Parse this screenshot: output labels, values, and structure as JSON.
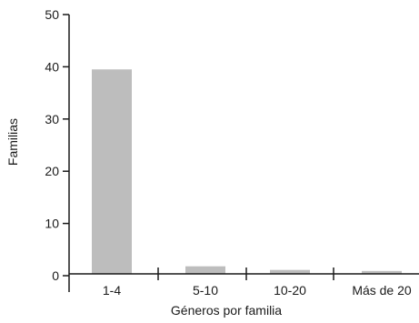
{
  "chart_data": {
    "type": "bar",
    "categories": [
      "1-4",
      "5-10",
      "10-20",
      "Más de 20"
    ],
    "values": [
      39.5,
      1.8,
      1.1,
      0.9
    ],
    "xlabel": "Géneros por familia",
    "ylabel": "Familias",
    "ylim": [
      0,
      50
    ],
    "yticks": [
      0,
      10,
      20,
      30,
      40,
      50
    ],
    "grid": false,
    "legend": "none",
    "bar_color": "#bdbdbd",
    "axis_color": "#1a1a1a"
  }
}
